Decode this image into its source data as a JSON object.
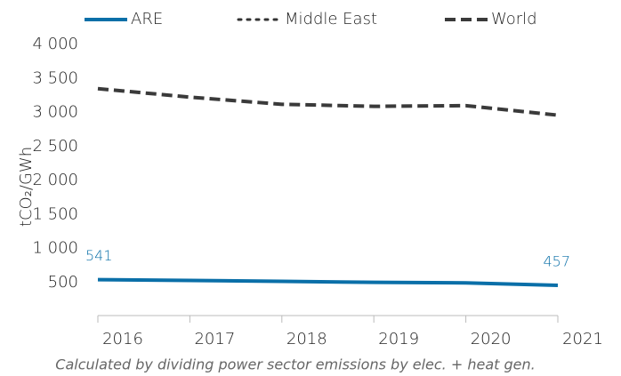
{
  "chart_data": {
    "type": "line",
    "y_label": "tCO₂/GWh",
    "note": "Calculated by dividing power sector emissions by elec. + heat gen.",
    "categories": [
      "2016",
      "2017",
      "2018",
      "2019",
      "2020",
      "2021"
    ],
    "series": [
      {
        "name": "ARE",
        "color": "#0a6fa8",
        "dash": "solid",
        "end_labels": true,
        "values": [
          541,
          530,
          516,
          502,
          494,
          457
        ]
      },
      {
        "name": "Middle East",
        "color": "#333333",
        "dash": "dot",
        "values": [
          null,
          null,
          null,
          null,
          null,
          null
        ]
      },
      {
        "name": "World",
        "color": "#3a3a3a",
        "dash": "dash",
        "values": [
          3350,
          3225,
          3120,
          3090,
          3100,
          2960
        ]
      }
    ],
    "ylim": [
      0,
      4000
    ],
    "yticks": [
      500,
      {
        "value": 1000,
        "label": "1 000"
      },
      {
        "value": 1500,
        "label": "1 500"
      },
      {
        "value": 2000,
        "label": "2 000"
      },
      {
        "value": 2500,
        "label": "2 500"
      },
      {
        "value": 3000,
        "label": "3 000"
      },
      {
        "value": 3500,
        "label": "3 500"
      },
      {
        "value": 4000,
        "label": "4 000"
      }
    ]
  }
}
